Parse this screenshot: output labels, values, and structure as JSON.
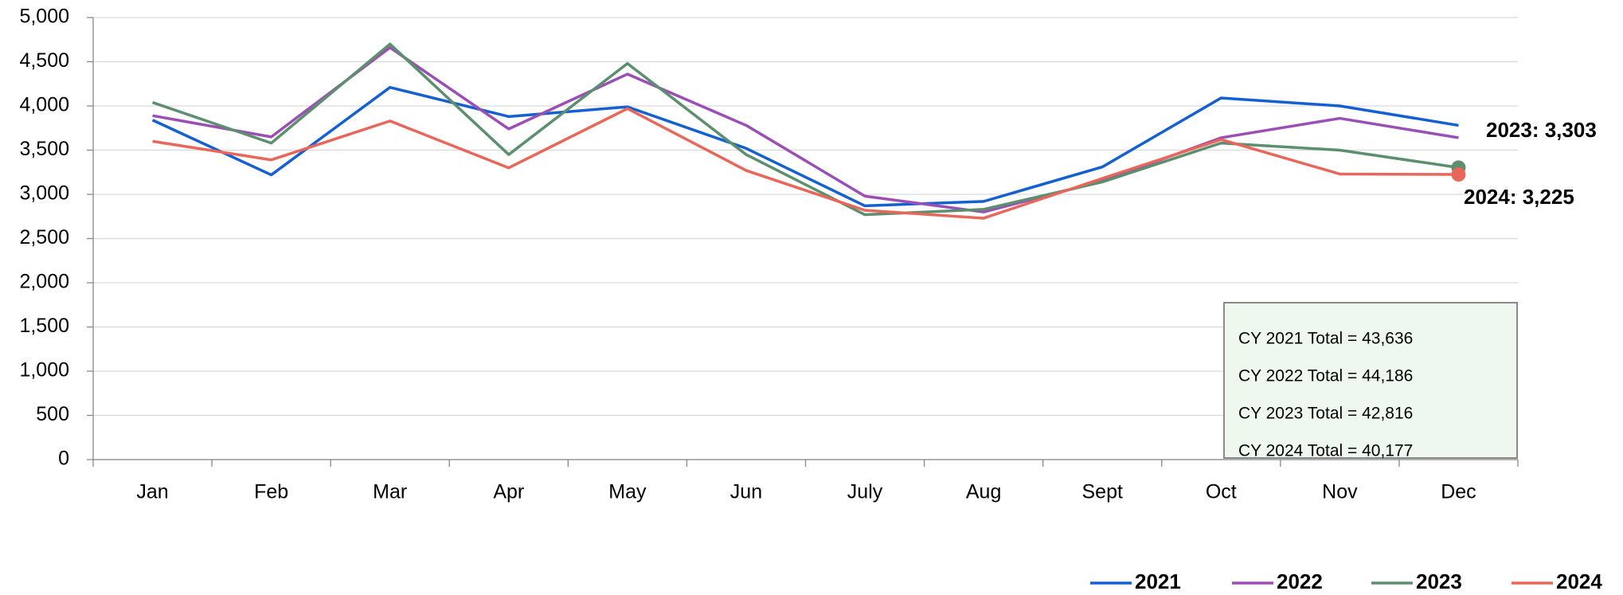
{
  "chart_data": {
    "type": "line",
    "categories": [
      "Jan",
      "Feb",
      "Mar",
      "Apr",
      "May",
      "Jun",
      "July",
      "Aug",
      "Sept",
      "Oct",
      "Nov",
      "Dec"
    ],
    "series": [
      {
        "name": "2021",
        "color": "#1560d0",
        "values": [
          3840,
          3220,
          4210,
          3880,
          3990,
          3520,
          2870,
          2920,
          3310,
          4090,
          4000,
          3780
        ]
      },
      {
        "name": "2022",
        "color": "#9b4fb5",
        "values": [
          3890,
          3650,
          4660,
          3740,
          4360,
          3780,
          2980,
          2800,
          3150,
          3640,
          3860,
          3640
        ]
      },
      {
        "name": "2023",
        "color": "#5b8f6e",
        "values": [
          4040,
          3580,
          4700,
          3450,
          4480,
          3450,
          2770,
          2830,
          3140,
          3580,
          3500,
          3303
        ]
      },
      {
        "name": "2024",
        "color": "#e8675a",
        "values": [
          3600,
          3390,
          3830,
          3300,
          3970,
          3270,
          2820,
          2730,
          3180,
          3620,
          3230,
          3225
        ]
      }
    ],
    "ylim": [
      0,
      5000
    ],
    "yticks": [
      0,
      500,
      {
        "value": 1000,
        "label": "1,000"
      },
      {
        "value": 1500,
        "label": "1,500"
      },
      {
        "value": 2000,
        "label": "2,000"
      },
      {
        "value": 2500,
        "label": "2,500"
      },
      {
        "value": 3000,
        "label": "3,000"
      },
      {
        "value": 3500,
        "label": "3,500"
      },
      {
        "value": 4000,
        "label": "4,000"
      },
      {
        "value": 4500,
        "label": "4,500"
      },
      {
        "value": 5000,
        "label": "5,000"
      }
    ],
    "grid": true,
    "endpoint_labels": [
      {
        "series": 2,
        "text": "2023: 3,303"
      },
      {
        "series": 3,
        "text": "2024: 3,225"
      }
    ],
    "totals": [
      "CY 2021 Total = 43,636",
      "CY 2022 Total = 44,186",
      "CY 2023 Total = 42,816",
      "CY 2024 Total = 40,177"
    ],
    "legend": "bottom-right"
  }
}
